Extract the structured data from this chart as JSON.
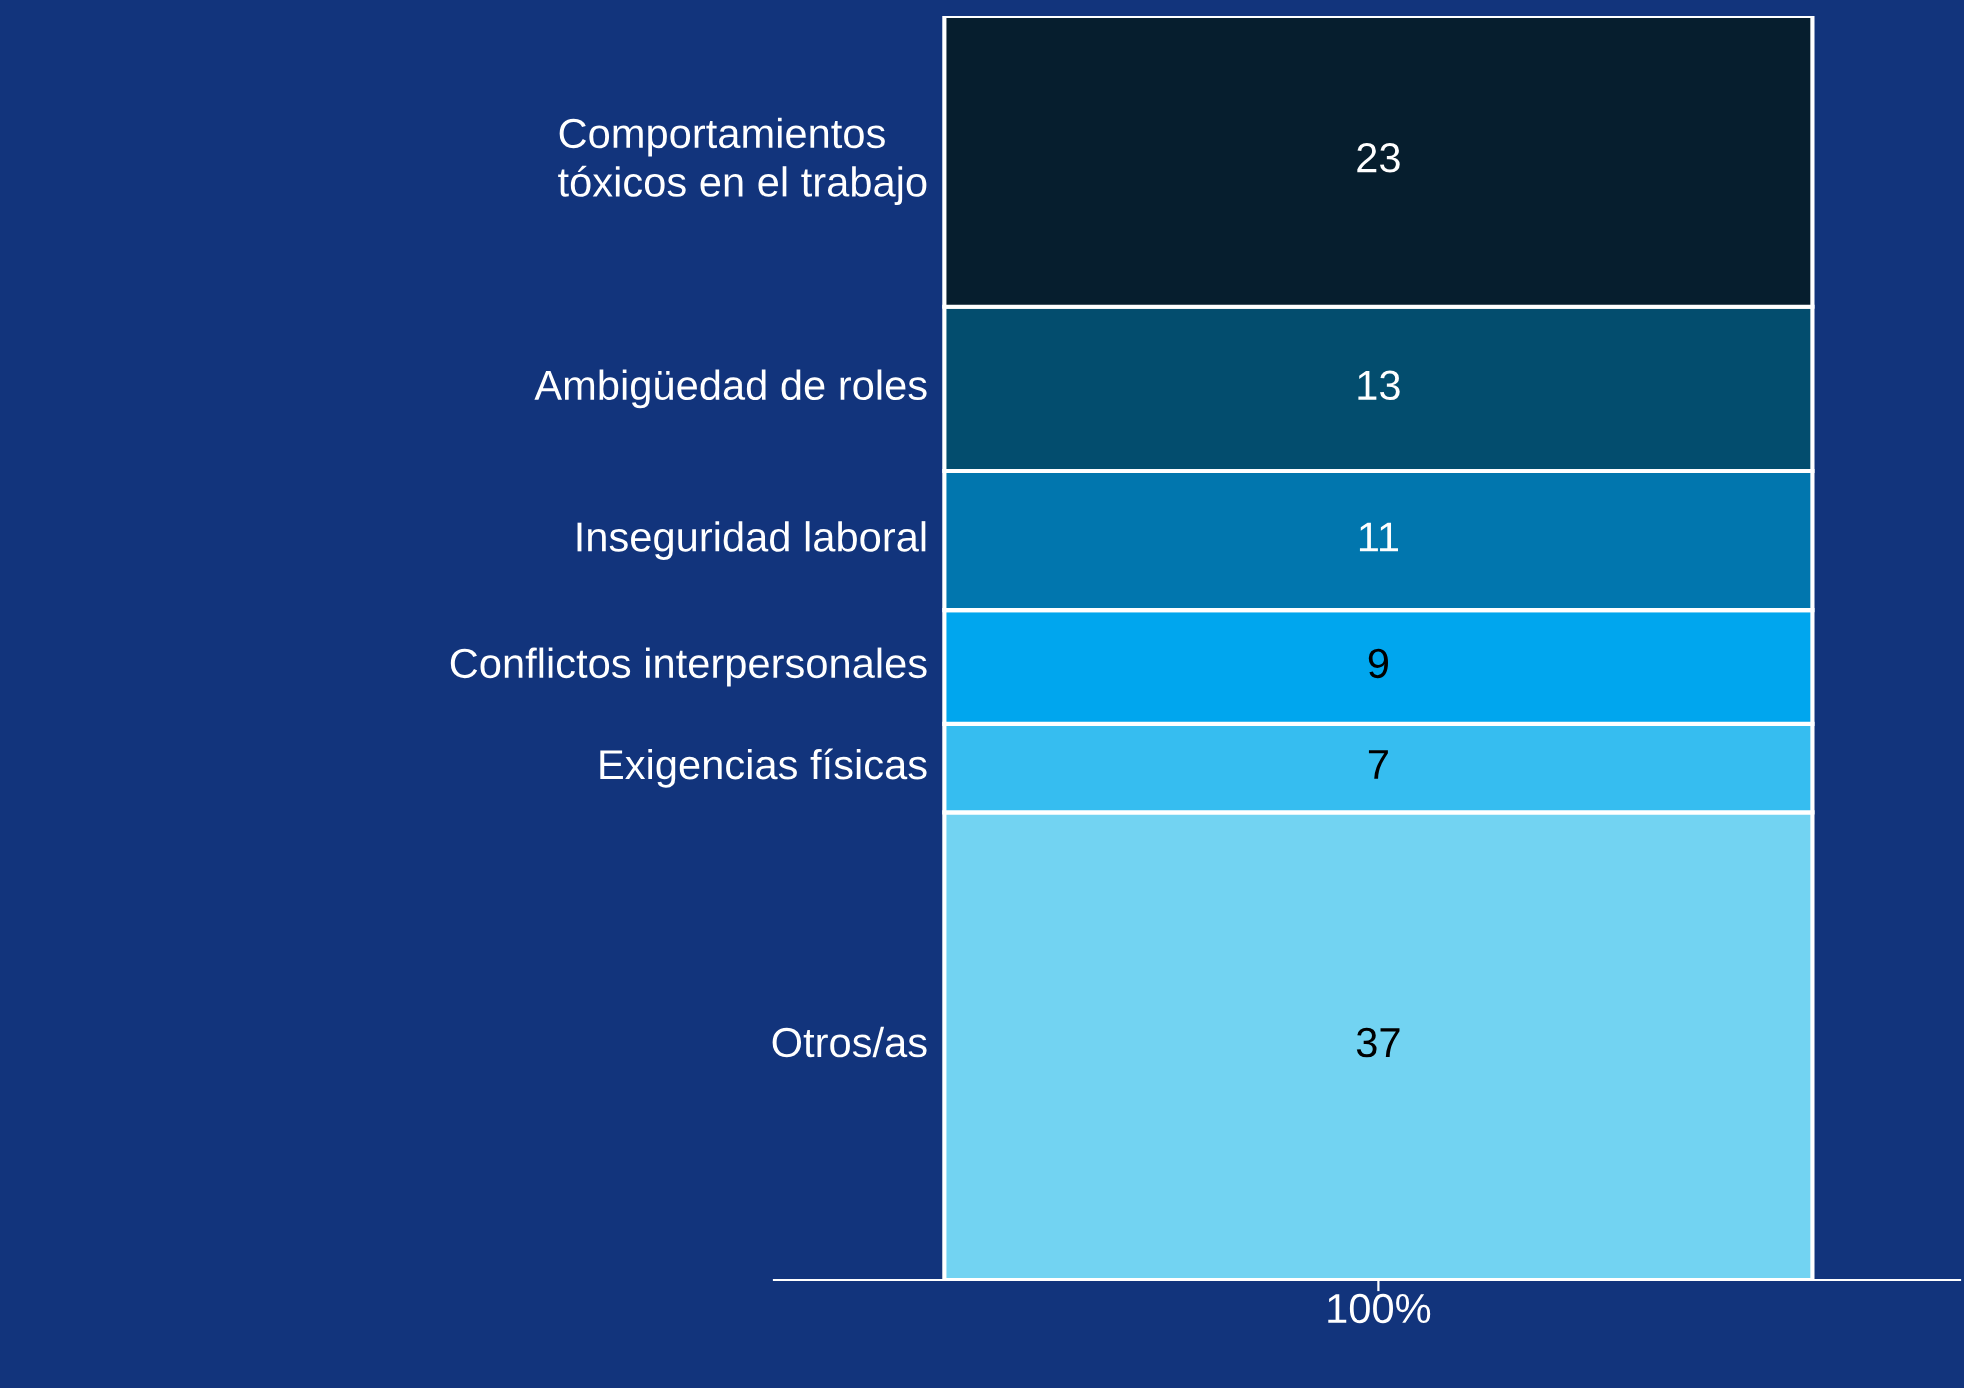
{
  "chart_data": {
    "type": "bar",
    "stacked": true,
    "categories": [
      null
    ],
    "annotations": [
      "100%"
    ],
    "data_labels": true,
    "legend": false,
    "grid": false,
    "series": [
      {
        "name": "Otros/as",
        "color": "#72d3f2",
        "values": [
          37
        ]
      },
      {
        "name": "Exigencias físicas",
        "color": "#36bdf0",
        "values": [
          7
        ]
      },
      {
        "name": "Conflictos interpersonales",
        "color": "#00a6ee",
        "values": [
          9
        ]
      },
      {
        "name": "Inseguridad laboral",
        "color": "#0176ae",
        "values": [
          11
        ]
      },
      {
        "name": "Ambigüedad de roles",
        "color": "#034d6e",
        "values": [
          13
        ]
      },
      {
        "name": "Comportamientos\ntóxicos en el trabajo",
        "color": "#061e2e",
        "values": [
          23
        ]
      }
    ]
  }
}
